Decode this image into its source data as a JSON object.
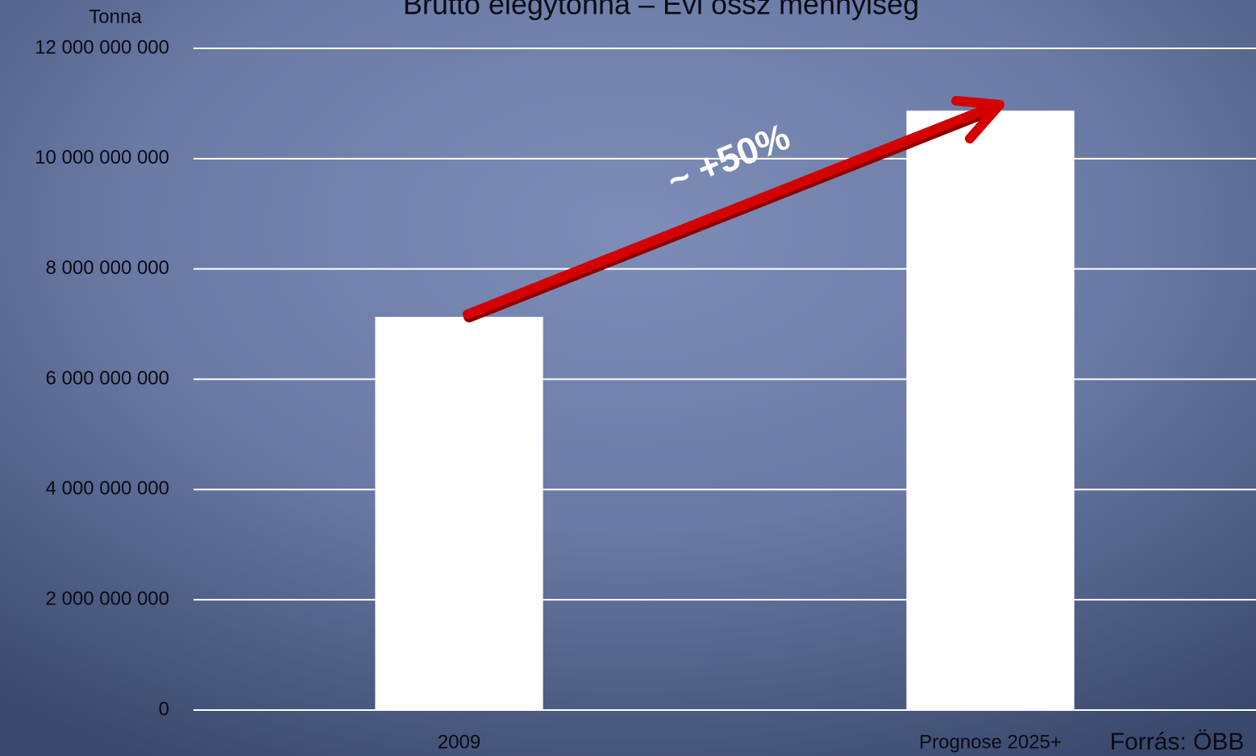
{
  "chart_data": {
    "type": "bar",
    "title": "Brutto elegytonna – Évi össz mennyiség",
    "y_label": "Tonna",
    "annotation": "~ +50%",
    "source": "Forrás: ÖBB",
    "categories": [
      "2009",
      "Prognose 2025+"
    ],
    "values": [
      7130000000,
      10870000000
    ],
    "color": "#ffffff",
    "ylim": [
      0,
      12000000000
    ],
    "yticks": [
      0,
      {
        "value": 2000000000,
        "label": "2 000 000 000"
      },
      {
        "value": 4000000000,
        "label": "4 000 000 000"
      },
      {
        "value": 6000000000,
        "label": "6 000 000 000"
      },
      {
        "value": 8000000000,
        "label": "8 000 000 000"
      },
      {
        "value": 10000000000,
        "label": "10 000 000 000"
      },
      {
        "value": 12000000000,
        "label": "12 000 000 000"
      }
    ],
    "grid": true
  }
}
